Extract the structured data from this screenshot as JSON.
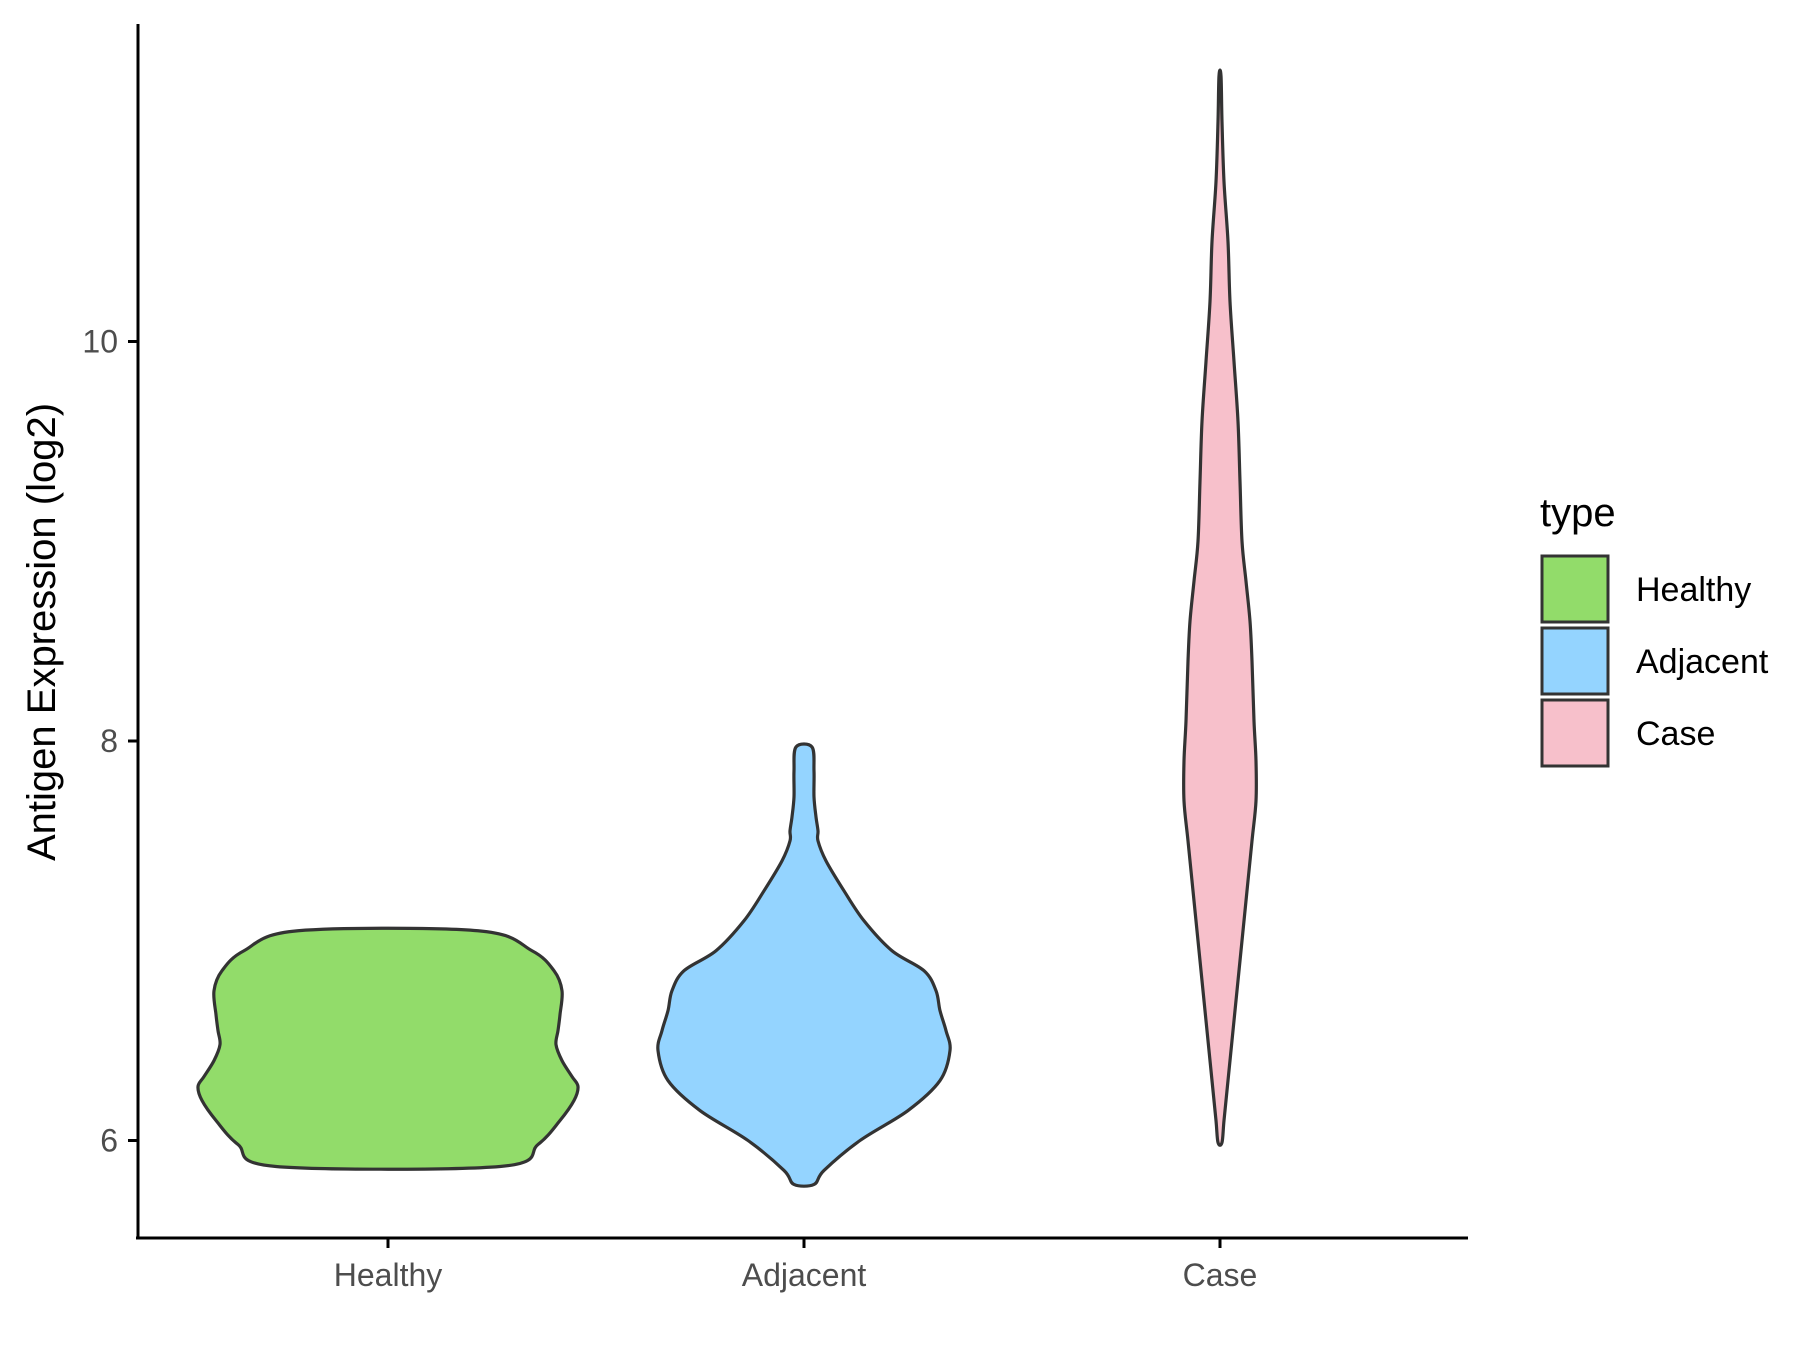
{
  "chart_data": {
    "type": "violin",
    "ylabel": "Antigen Expression (log2)",
    "xlabel": "",
    "ylim": [
      5.5,
      11.8
    ],
    "yticks": [
      6,
      8,
      10
    ],
    "categories": [
      "Healthy",
      "Adjacent",
      "Case"
    ],
    "grid": false,
    "legend": {
      "title": "type",
      "position": "right",
      "entries": [
        {
          "label": "Healthy",
          "color": "#92DC6A"
        },
        {
          "label": "Adjacent",
          "color": "#94D4FF"
        },
        {
          "label": "Case",
          "color": "#F7C0CB"
        }
      ]
    },
    "series": [
      {
        "category": "Healthy",
        "color": "#92DC6A",
        "min": 5.87,
        "max": 7.05,
        "density": [
          [
            5.87,
            0.56
          ],
          [
            5.98,
            0.75
          ],
          [
            6.1,
            0.86
          ],
          [
            6.2,
            0.93
          ],
          [
            6.27,
            0.95
          ],
          [
            6.32,
            0.92
          ],
          [
            6.4,
            0.87
          ],
          [
            6.48,
            0.84
          ],
          [
            6.55,
            0.85
          ],
          [
            6.63,
            0.86
          ],
          [
            6.75,
            0.87
          ],
          [
            6.85,
            0.83
          ],
          [
            6.95,
            0.72
          ],
          [
            7.05,
            0.45
          ]
        ]
      },
      {
        "category": "Adjacent",
        "color": "#94D4FF",
        "min": 5.78,
        "max": 7.97,
        "density": [
          [
            5.78,
            0.05
          ],
          [
            5.85,
            0.1
          ],
          [
            6.0,
            0.28
          ],
          [
            6.15,
            0.52
          ],
          [
            6.3,
            0.68
          ],
          [
            6.45,
            0.73
          ],
          [
            6.55,
            0.71
          ],
          [
            6.65,
            0.68
          ],
          [
            6.75,
            0.66
          ],
          [
            6.85,
            0.6
          ],
          [
            6.95,
            0.44
          ],
          [
            7.1,
            0.3
          ],
          [
            7.25,
            0.2
          ],
          [
            7.4,
            0.11
          ],
          [
            7.5,
            0.07
          ],
          [
            7.55,
            0.07
          ],
          [
            7.62,
            0.06
          ],
          [
            7.72,
            0.05
          ],
          [
            7.85,
            0.05
          ],
          [
            7.97,
            0.04
          ]
        ]
      },
      {
        "category": "Case",
        "color": "#F7C0CB",
        "min": 5.99,
        "max": 11.33,
        "density": [
          [
            5.99,
            0.01
          ],
          [
            6.1,
            0.02
          ],
          [
            6.3,
            0.04
          ],
          [
            6.6,
            0.07
          ],
          [
            6.9,
            0.1
          ],
          [
            7.2,
            0.13
          ],
          [
            7.5,
            0.16
          ],
          [
            7.7,
            0.18
          ],
          [
            7.9,
            0.18
          ],
          [
            8.1,
            0.17
          ],
          [
            8.4,
            0.16
          ],
          [
            8.6,
            0.15
          ],
          [
            8.8,
            0.13
          ],
          [
            9.0,
            0.11
          ],
          [
            9.3,
            0.1
          ],
          [
            9.6,
            0.09
          ],
          [
            9.9,
            0.07
          ],
          [
            10.2,
            0.05
          ],
          [
            10.5,
            0.04
          ],
          [
            10.8,
            0.02
          ],
          [
            11.1,
            0.01
          ],
          [
            11.33,
            0.005
          ]
        ]
      }
    ]
  }
}
